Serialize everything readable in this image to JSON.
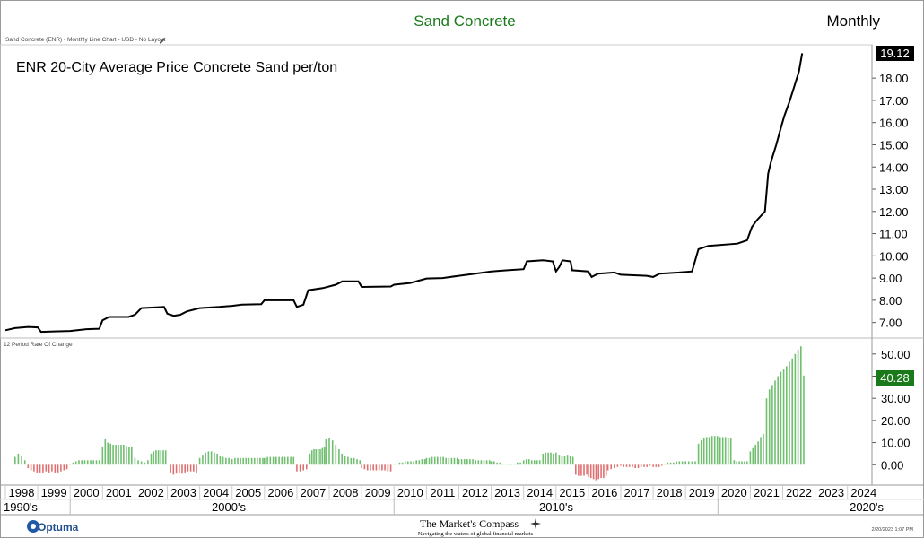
{
  "header": {
    "title": "Sand Concrete",
    "title_color": "#1a7a1a",
    "frequency": "Monthly",
    "chart_info": "Sand Concrete (ENR) - Monthly Line Chart - USD - No Layout",
    "edit_icon": "pencil-icon"
  },
  "footer": {
    "brand": "Optuma",
    "brand_icon": "optuma-logo-icon",
    "compass_title": "The Market's Compass",
    "compass_tagline": "Navigating the waters of global financial markets",
    "compass_icon": "compass-rose-icon",
    "timestamp": "2/20/2023 1:07 PM"
  },
  "colors": {
    "price_line": "#000000",
    "roc_positive": "#6fbf6f",
    "roc_negative": "#e07070",
    "last_price_bg": "#000000",
    "last_roc_bg": "#1a7a1a"
  },
  "chart_data": [
    {
      "type": "line",
      "title": "ENR 20-City Average Price Concrete Sand per/ton",
      "ylim": [
        6.3,
        19.5
      ],
      "yticks": [
        "7.00",
        "8.00",
        "9.00",
        "10.00",
        "11.00",
        "12.00",
        "13.00",
        "14.00",
        "15.00",
        "16.00",
        "17.00",
        "18.00"
      ],
      "last_value_label": "19.12",
      "points": [
        [
          1998.0,
          6.65
        ],
        [
          1998.3,
          6.75
        ],
        [
          1998.7,
          6.8
        ],
        [
          1999.0,
          6.78
        ],
        [
          1999.1,
          6.58
        ],
        [
          1999.5,
          6.6
        ],
        [
          2000.0,
          6.62
        ],
        [
          2000.5,
          6.7
        ],
        [
          2000.9,
          6.72
        ],
        [
          2001.0,
          7.1
        ],
        [
          2001.2,
          7.25
        ],
        [
          2001.8,
          7.25
        ],
        [
          2002.0,
          7.35
        ],
        [
          2002.2,
          7.65
        ],
        [
          2002.9,
          7.7
        ],
        [
          2003.0,
          7.4
        ],
        [
          2003.2,
          7.3
        ],
        [
          2003.4,
          7.35
        ],
        [
          2003.6,
          7.5
        ],
        [
          2004.0,
          7.65
        ],
        [
          2004.6,
          7.7
        ],
        [
          2005.0,
          7.75
        ],
        [
          2005.3,
          7.8
        ],
        [
          2005.9,
          7.82
        ],
        [
          2006.0,
          8.0
        ],
        [
          2006.9,
          8.0
        ],
        [
          2007.0,
          7.7
        ],
        [
          2007.2,
          7.8
        ],
        [
          2007.35,
          8.45
        ],
        [
          2007.8,
          8.55
        ],
        [
          2008.2,
          8.7
        ],
        [
          2008.4,
          8.85
        ],
        [
          2008.9,
          8.85
        ],
        [
          2009.0,
          8.6
        ],
        [
          2009.9,
          8.62
        ],
        [
          2010.0,
          8.7
        ],
        [
          2010.5,
          8.78
        ],
        [
          2011.0,
          8.98
        ],
        [
          2011.5,
          9.0
        ],
        [
          2012.0,
          9.1
        ],
        [
          2012.5,
          9.2
        ],
        [
          2013.0,
          9.3
        ],
        [
          2013.5,
          9.35
        ],
        [
          2014.0,
          9.4
        ],
        [
          2014.1,
          9.75
        ],
        [
          2014.6,
          9.8
        ],
        [
          2014.9,
          9.75
        ],
        [
          2015.0,
          9.3
        ],
        [
          2015.1,
          9.5
        ],
        [
          2015.2,
          9.8
        ],
        [
          2015.45,
          9.75
        ],
        [
          2015.5,
          9.35
        ],
        [
          2016.0,
          9.3
        ],
        [
          2016.1,
          9.05
        ],
        [
          2016.3,
          9.2
        ],
        [
          2016.8,
          9.25
        ],
        [
          2017.0,
          9.15
        ],
        [
          2017.8,
          9.1
        ],
        [
          2018.0,
          9.05
        ],
        [
          2018.2,
          9.2
        ],
        [
          2018.8,
          9.25
        ],
        [
          2019.2,
          9.3
        ],
        [
          2019.3,
          9.8
        ],
        [
          2019.4,
          10.3
        ],
        [
          2019.7,
          10.45
        ],
        [
          2020.6,
          10.55
        ],
        [
          2020.9,
          10.7
        ],
        [
          2021.05,
          11.3
        ],
        [
          2021.2,
          11.6
        ],
        [
          2021.45,
          12.0
        ],
        [
          2021.55,
          13.7
        ],
        [
          2021.65,
          14.3
        ],
        [
          2021.8,
          15.0
        ],
        [
          2021.95,
          15.8
        ],
        [
          2022.05,
          16.3
        ],
        [
          2022.2,
          16.9
        ],
        [
          2022.35,
          17.6
        ],
        [
          2022.5,
          18.3
        ],
        [
          2022.6,
          19.12
        ]
      ]
    },
    {
      "type": "bar",
      "title": "12 Period Rate Of Change",
      "ylim": [
        -8,
        56
      ],
      "yticks": [
        "0.00",
        "10.00",
        "20.00",
        "30.00",
        "40.00",
        "50.00"
      ],
      "last_value_label": "40.28",
      "segments": [
        {
          "x0": 1998.3,
          "x1": 1998.6,
          "values": [
            3.5,
            5.0,
            4.0,
            2.0
          ]
        },
        {
          "x0": 1998.7,
          "x1": 1999.9,
          "values": [
            -1.5,
            -2.5,
            -3.0,
            -3.5,
            -3.5,
            -3.5,
            -3.0,
            -3.5,
            -3.0,
            -3.5,
            -3.5,
            -3.0,
            -2.5,
            -2.0
          ]
        },
        {
          "x0": 2000.0,
          "x1": 2000.9,
          "values": [
            0.5,
            1.0,
            1.5,
            2.0,
            2.0,
            2.0,
            2.0,
            2.0,
            2.0,
            2.0,
            2.0
          ]
        },
        {
          "x0": 2001.0,
          "x1": 2001.9,
          "values": [
            8.0,
            11.5,
            10.0,
            9.5,
            9.0,
            9.0,
            9.0,
            9.0,
            9.0,
            8.5,
            8.0,
            8.0
          ]
        },
        {
          "x0": 2002.0,
          "x1": 2002.4,
          "values": [
            3.0,
            2.0,
            1.5,
            1.0,
            2.0
          ]
        },
        {
          "x0": 2002.5,
          "x1": 2002.95,
          "values": [
            5.0,
            6.0,
            6.5,
            6.5,
            6.5,
            6.5,
            6.5
          ]
        },
        {
          "x0": 2003.1,
          "x1": 2003.9,
          "values": [
            -3.5,
            -4.5,
            -4.0,
            -3.5,
            -4.0,
            -3.5,
            -3.0,
            -3.0,
            -3.0,
            -3.5
          ]
        },
        {
          "x0": 2004.0,
          "x1": 2004.9,
          "values": [
            3.0,
            4.5,
            5.5,
            6.0,
            6.0,
            5.5,
            5.0,
            4.0,
            3.5,
            3.0,
            3.0
          ]
        },
        {
          "x0": 2005.0,
          "x1": 2005.95,
          "values": [
            2.5,
            3.0,
            3.0,
            3.0,
            3.0,
            3.0,
            3.0,
            3.0,
            3.0,
            3.0,
            3.0,
            3.0
          ]
        },
        {
          "x0": 2006.0,
          "x1": 2006.9,
          "values": [
            3.0,
            3.5,
            3.5,
            3.5,
            3.5,
            3.5,
            3.5,
            3.5,
            3.5,
            3.5,
            3.5
          ]
        },
        {
          "x0": 2007.0,
          "x1": 2007.3,
          "values": [
            -3.0,
            -3.0,
            -2.5,
            -2.0
          ]
        },
        {
          "x0": 2007.4,
          "x1": 2007.85,
          "values": [
            5.0,
            6.5,
            7.0,
            7.0,
            7.0,
            7.0,
            7.5,
            8.0
          ]
        },
        {
          "x0": 2007.9,
          "x1": 2008.2,
          "values": [
            11.5,
            12.0,
            11.0,
            9.0
          ]
        },
        {
          "x0": 2008.3,
          "x1": 2008.95,
          "values": [
            7.0,
            5.0,
            4.0,
            3.5,
            3.0,
            3.0,
            2.5,
            2.0
          ]
        },
        {
          "x0": 2009.0,
          "x1": 2009.9,
          "values": [
            -1.5,
            -2.0,
            -2.5,
            -2.5,
            -2.5,
            -2.5,
            -2.5,
            -2.5,
            -2.5,
            -3.0,
            -3.0
          ]
        },
        {
          "x0": 2010.0,
          "x1": 2010.95,
          "values": [
            0.5,
            0.5,
            1.0,
            1.0,
            1.5,
            1.5,
            1.5,
            1.5,
            2.0,
            2.0,
            2.5,
            2.5
          ]
        },
        {
          "x0": 2011.0,
          "x1": 2011.95,
          "values": [
            3.0,
            3.0,
            3.5,
            3.5,
            3.5,
            3.5,
            3.5,
            3.0,
            3.0,
            3.0,
            3.0,
            3.0
          ]
        },
        {
          "x0": 2012.0,
          "x1": 2012.95,
          "values": [
            2.5,
            2.5,
            2.5,
            2.5,
            2.5,
            2.5,
            2.0,
            2.0,
            2.0,
            2.0,
            2.0,
            2.0
          ]
        },
        {
          "x0": 2013.0,
          "x1": 2013.9,
          "values": [
            1.5,
            1.5,
            1.0,
            1.0,
            0.5,
            0.5,
            0.5,
            0.5,
            0.5,
            1.0,
            1.0
          ]
        },
        {
          "x0": 2014.0,
          "x1": 2014.5,
          "values": [
            2.0,
            2.5,
            2.5,
            2.0,
            2.0,
            2.0,
            2.0
          ]
        },
        {
          "x0": 2014.6,
          "x1": 2015.0,
          "values": [
            5.0,
            5.5,
            5.5,
            5.5,
            5.0,
            5.5
          ]
        },
        {
          "x0": 2015.1,
          "x1": 2015.95,
          "values": [
            4.5,
            4.0,
            4.0,
            4.5,
            4.0,
            3.5,
            -4.5,
            -5.0,
            -5.0,
            -5.0,
            -4.5
          ]
        },
        {
          "x0": 2016.0,
          "x1": 2016.55,
          "values": [
            -5.5,
            -6.0,
            -6.5,
            -7.0,
            -6.5,
            -6.0,
            -6.0,
            -5.0
          ]
        },
        {
          "x0": 2016.6,
          "x1": 2016.9,
          "values": [
            -2.5,
            -2.0,
            -1.5,
            -1.0
          ]
        },
        {
          "x0": 2017.0,
          "x1": 2017.9,
          "values": [
            -0.5,
            -1.0,
            -1.0,
            -1.0,
            -1.0,
            -1.5,
            -1.5,
            -1.0,
            -1.0,
            -1.0,
            -0.5
          ]
        },
        {
          "x0": 2018.0,
          "x1": 2018.9,
          "values": [
            -1.0,
            -1.0,
            -1.0,
            -0.5,
            0.5,
            1.0,
            1.0,
            1.0,
            1.5,
            1.5,
            1.5
          ]
        },
        {
          "x0": 2019.0,
          "x1": 2019.3,
          "values": [
            1.5,
            1.5,
            1.5,
            1.5
          ]
        },
        {
          "x0": 2019.4,
          "x1": 2020.4,
          "values": [
            9.5,
            11.0,
            12.0,
            12.5,
            12.5,
            13.0,
            13.0,
            13.0,
            12.5,
            12.5,
            12.5,
            12.0,
            12.0
          ]
        },
        {
          "x0": 2020.5,
          "x1": 2020.9,
          "values": [
            2.0,
            1.5,
            1.5,
            1.5,
            1.5,
            1.5
          ]
        },
        {
          "x0": 2021.0,
          "x1": 2021.4,
          "values": [
            6.0,
            7.5,
            9.0,
            10.5,
            12.5,
            14.0
          ]
        },
        {
          "x0": 2021.5,
          "x1": 2022.65,
          "values": [
            30.0,
            34.0,
            36.0,
            38.0,
            40.0,
            42.0,
            43.0,
            44.5,
            46.5,
            48.0,
            50.0,
            52.0,
            53.5,
            40.28
          ]
        }
      ]
    }
  ],
  "x_axis": {
    "years": [
      "1998",
      "1999",
      "2000",
      "2001",
      "2002",
      "2003",
      "2004",
      "2005",
      "2006",
      "2007",
      "2008",
      "2009",
      "2010",
      "2011",
      "2012",
      "2013",
      "2014",
      "2015",
      "2016",
      "2017",
      "2018",
      "2019",
      "2020",
      "2021",
      "2022",
      "2023",
      "2024"
    ],
    "decades": [
      "1990's",
      "2000's",
      "2010's",
      "2020's"
    ]
  }
}
